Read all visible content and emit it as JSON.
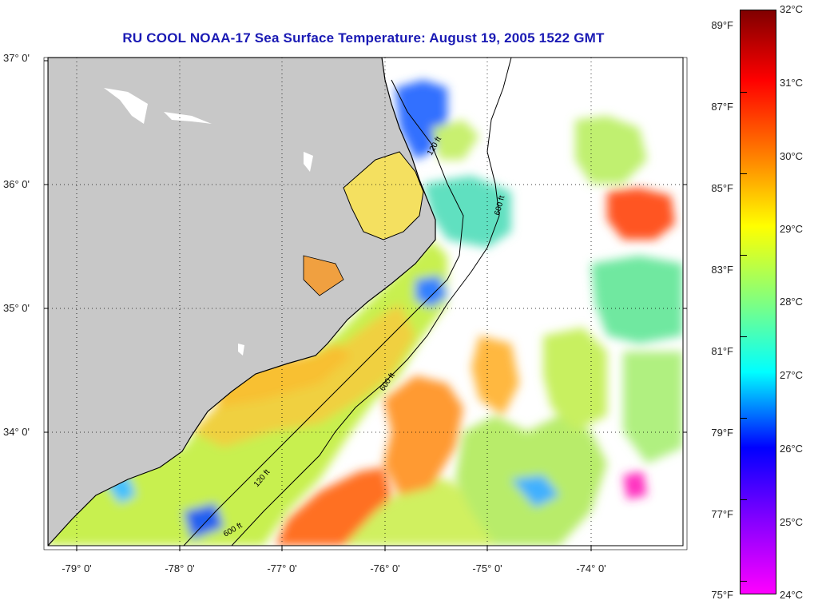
{
  "title": "RU COOL  NOAA-17  Sea Surface Temperature:  August 19, 2005 1522 GMT",
  "map": {
    "lat_labels": [
      "37° 0'",
      "36° 0'",
      "35° 0'",
      "34° 0'"
    ],
    "lon_labels": [
      "-79° 0'",
      "-78° 0'",
      "-77° 0'",
      "-76° 0'",
      "-75° 0'",
      "-74° 0'"
    ],
    "contour_labels": [
      "120 ft",
      "600 ft"
    ],
    "land_color": "#c8c8c8",
    "cloud_color": "#ffffff"
  },
  "colorbar": {
    "fahrenheit_labels": [
      "89°F",
      "87°F",
      "85°F",
      "83°F",
      "81°F",
      "79°F",
      "77°F",
      "75°F"
    ],
    "celsius_labels": [
      "32°C",
      "31°C",
      "30°C",
      "29°C",
      "28°C",
      "27°C",
      "26°C",
      "25°C",
      "24°C"
    ],
    "colors": [
      "#ff00ff",
      "#8000ff",
      "#0000ff",
      "#00ffff",
      "#80ff80",
      "#ffff00",
      "#ff8000",
      "#ff0000",
      "#800000"
    ]
  }
}
